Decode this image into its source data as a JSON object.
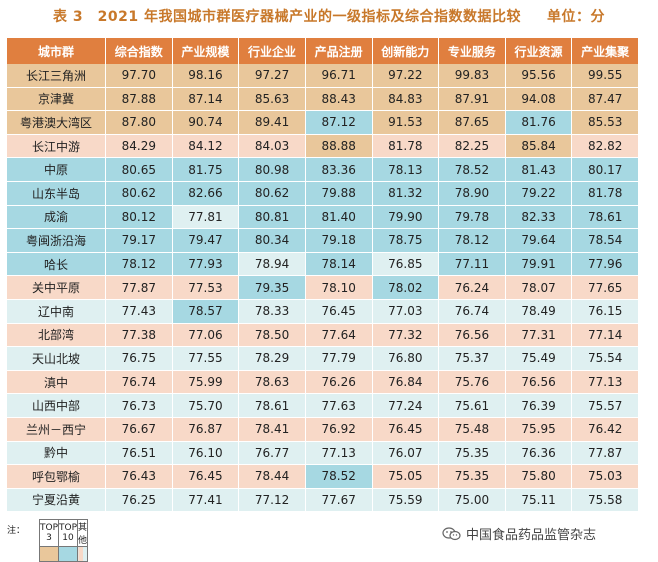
{
  "title": "表 3　2021 年我国城市群医疗器械产业的一级指标及综合指数数据比较",
  "unit": "单位：分",
  "headers": [
    "城市群",
    "综合指数",
    "产业规模",
    "行业企业",
    "产品注册",
    "创新能力",
    "专业服务",
    "行业资源",
    "产业集聚"
  ],
  "rows": [
    {
      "name": "长江三角洲",
      "values": [
        "97.70",
        "98.16",
        "97.27",
        "96.71",
        "97.22",
        "99.83",
        "95.56",
        "99.55"
      ],
      "colors": [
        "top3",
        "top3",
        "top3",
        "top3",
        "top3",
        "top3",
        "top3",
        "top3",
        "top3"
      ]
    },
    {
      "name": "京津冀",
      "values": [
        "87.88",
        "87.14",
        "85.63",
        "88.43",
        "84.83",
        "87.91",
        "94.08",
        "87.47"
      ],
      "colors": [
        "top3",
        "top3",
        "top3",
        "top3",
        "top3",
        "top3",
        "top3",
        "top3",
        "top3"
      ]
    },
    {
      "name": "粤港澳大湾区",
      "values": [
        "87.80",
        "90.74",
        "89.41",
        "87.12",
        "91.53",
        "87.65",
        "81.76",
        "85.53"
      ],
      "colors": [
        "top3",
        "top3",
        "top3",
        "top3",
        "top10",
        "top3",
        "top3",
        "top10",
        "top3"
      ]
    },
    {
      "name": "长江中游",
      "values": [
        "84.29",
        "84.12",
        "84.03",
        "88.88",
        "81.78",
        "82.25",
        "85.84",
        "82.82"
      ],
      "colors": [
        "other",
        "other",
        "other",
        "other",
        "top3",
        "other",
        "other",
        "top3",
        "other"
      ]
    },
    {
      "name": "中原",
      "values": [
        "80.65",
        "81.75",
        "80.98",
        "83.36",
        "78.13",
        "78.52",
        "81.43",
        "80.17"
      ],
      "colors": [
        "top10",
        "top10",
        "top10",
        "top10",
        "top10",
        "top10",
        "top10",
        "top10",
        "top10"
      ]
    },
    {
      "name": "山东半岛",
      "values": [
        "80.62",
        "82.66",
        "80.62",
        "79.88",
        "81.32",
        "78.90",
        "79.22",
        "81.78"
      ],
      "colors": [
        "top10",
        "top10",
        "top10",
        "top10",
        "top10",
        "top10",
        "top10",
        "top10",
        "top10"
      ]
    },
    {
      "name": "成渝",
      "values": [
        "80.12",
        "77.81",
        "80.81",
        "81.40",
        "79.90",
        "79.78",
        "82.33",
        "78.61"
      ],
      "colors": [
        "top10",
        "top10",
        "light",
        "top10",
        "top10",
        "top10",
        "top10",
        "top10",
        "top10"
      ]
    },
    {
      "name": "粤闽浙沿海",
      "values": [
        "79.17",
        "79.47",
        "80.34",
        "79.18",
        "78.75",
        "78.12",
        "79.64",
        "78.54"
      ],
      "colors": [
        "top10",
        "top10",
        "top10",
        "top10",
        "top10",
        "top10",
        "top10",
        "top10",
        "top10"
      ]
    },
    {
      "name": "哈长",
      "values": [
        "78.12",
        "77.93",
        "78.94",
        "78.14",
        "76.85",
        "77.11",
        "79.91",
        "77.96"
      ],
      "colors": [
        "top10",
        "top10",
        "top10",
        "light",
        "top10",
        "light",
        "top10",
        "top10",
        "top10"
      ]
    },
    {
      "name": "关中平原",
      "values": [
        "77.87",
        "77.53",
        "79.35",
        "78.10",
        "78.02",
        "76.24",
        "78.07",
        "77.65"
      ],
      "colors": [
        "other",
        "other",
        "other",
        "top10",
        "other",
        "top10",
        "other",
        "other",
        "other"
      ]
    },
    {
      "name": "辽中南",
      "values": [
        "77.43",
        "78.57",
        "78.33",
        "76.45",
        "77.03",
        "76.74",
        "78.49",
        "76.15"
      ],
      "colors": [
        "light",
        "light",
        "top10",
        "light",
        "light",
        "light",
        "light",
        "light",
        "light"
      ]
    },
    {
      "name": "北部湾",
      "values": [
        "77.38",
        "77.06",
        "78.50",
        "77.64",
        "77.32",
        "76.56",
        "77.31",
        "77.14"
      ],
      "colors": [
        "other",
        "other",
        "other",
        "other",
        "other",
        "other",
        "other",
        "other",
        "other"
      ]
    },
    {
      "name": "天山北坡",
      "values": [
        "76.75",
        "77.55",
        "78.29",
        "77.79",
        "76.80",
        "75.37",
        "75.49",
        "75.54"
      ],
      "colors": [
        "light",
        "light",
        "light",
        "light",
        "light",
        "light",
        "light",
        "light",
        "light"
      ]
    },
    {
      "name": "滇中",
      "values": [
        "76.74",
        "75.99",
        "78.63",
        "76.26",
        "76.84",
        "75.76",
        "76.56",
        "77.13"
      ],
      "colors": [
        "other",
        "other",
        "other",
        "other",
        "other",
        "other",
        "other",
        "other",
        "other"
      ]
    },
    {
      "name": "山西中部",
      "values": [
        "76.73",
        "75.70",
        "78.61",
        "77.63",
        "77.24",
        "75.61",
        "76.39",
        "75.57"
      ],
      "colors": [
        "light",
        "light",
        "light",
        "light",
        "light",
        "light",
        "light",
        "light",
        "light"
      ]
    },
    {
      "name": "兰州－西宁",
      "values": [
        "76.67",
        "76.87",
        "78.41",
        "76.92",
        "76.45",
        "75.48",
        "75.95",
        "76.42"
      ],
      "colors": [
        "other",
        "other",
        "other",
        "other",
        "other",
        "other",
        "other",
        "other",
        "other"
      ]
    },
    {
      "name": "黔中",
      "values": [
        "76.51",
        "76.10",
        "76.77",
        "77.13",
        "76.07",
        "75.35",
        "76.36",
        "77.87"
      ],
      "colors": [
        "light",
        "light",
        "light",
        "light",
        "light",
        "light",
        "light",
        "light",
        "light"
      ]
    },
    {
      "name": "呼包鄂榆",
      "values": [
        "76.43",
        "76.45",
        "78.44",
        "78.52",
        "75.05",
        "75.35",
        "75.80",
        "75.03"
      ],
      "colors": [
        "other",
        "other",
        "other",
        "other",
        "top10",
        "other",
        "other",
        "other",
        "other"
      ]
    },
    {
      "name": "宁夏沿黄",
      "values": [
        "76.25",
        "77.41",
        "77.12",
        "77.67",
        "75.59",
        "75.00",
        "75.11",
        "75.58"
      ],
      "colors": [
        "light",
        "light",
        "light",
        "light",
        "light",
        "light",
        "light",
        "light",
        "light"
      ]
    }
  ],
  "legend": {
    "note": "注：",
    "items": [
      "TOP 3",
      "TOP 10",
      "其他"
    ],
    "colors": {
      "top3": "#e9c79b",
      "top10": "#a6d8e2",
      "other": "#f8d9c8",
      "light": "#dff0f1"
    }
  },
  "brand": {
    "icon": "wechat-icon",
    "text": "中国食品药品监管杂志"
  }
}
